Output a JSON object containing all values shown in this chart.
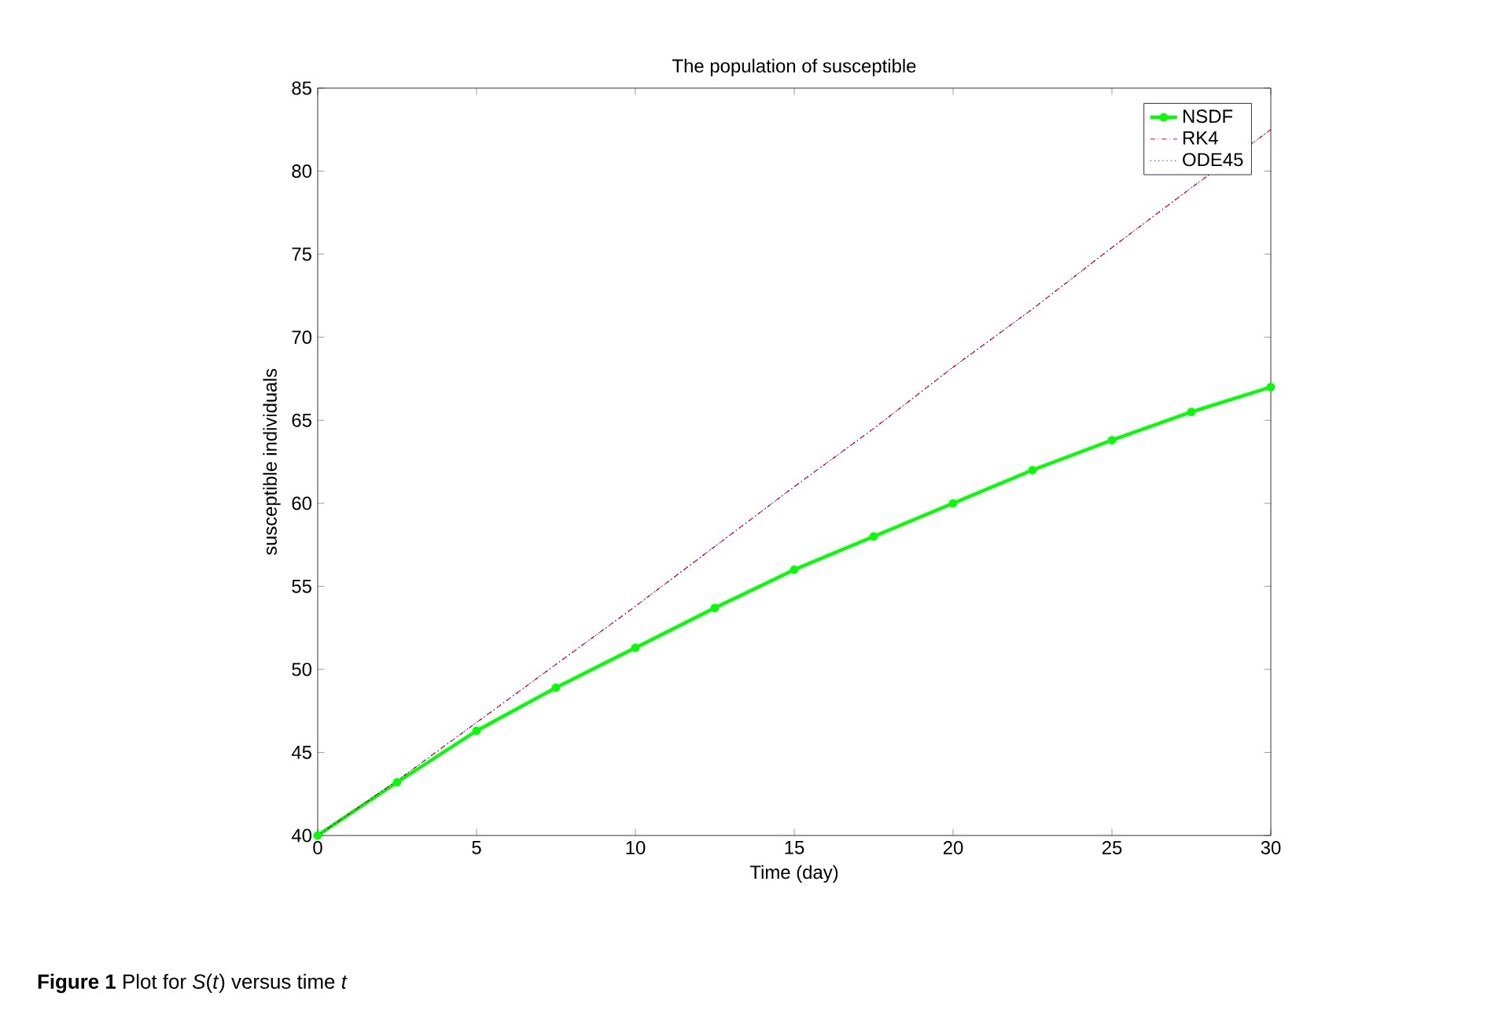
{
  "chart_data": {
    "type": "line",
    "title": "The population of susceptible",
    "xlabel": "Time (day)",
    "ylabel": "susceptible individuals",
    "x": [
      0,
      2.5,
      5,
      7.5,
      10,
      12.5,
      15,
      17.5,
      20,
      22.5,
      25,
      27.5,
      30
    ],
    "series": [
      {
        "name": "NSDF",
        "color": "#00ff00",
        "marker": "circle",
        "line_style": "solid",
        "values": [
          40,
          43.2,
          46.3,
          48.9,
          51.3,
          53.7,
          56.0,
          58.0,
          60.0,
          62.0,
          63.8,
          65.5,
          67.0
        ]
      },
      {
        "name": "RK4",
        "color": "#ff0000",
        "marker": "none",
        "line_style": "dashed",
        "values": [
          40,
          43.3,
          46.8,
          50.3,
          53.8,
          57.4,
          61.0,
          64.5,
          68.2,
          71.7,
          75.4,
          79.0,
          82.5
        ]
      },
      {
        "name": "ODE45",
        "color": "#0000ff",
        "marker": "none",
        "line_style": "dotted",
        "values": [
          40,
          43.3,
          46.8,
          50.3,
          53.8,
          57.4,
          61.0,
          64.5,
          68.2,
          71.7,
          75.4,
          79.0,
          82.5
        ]
      }
    ],
    "xlim": [
      0,
      30
    ],
    "xticks": [
      0,
      5,
      10,
      15,
      20,
      25,
      30
    ],
    "ylim": [
      40,
      85
    ],
    "yticks": [
      40,
      45,
      50,
      55,
      60,
      65,
      70,
      75,
      80,
      85
    ],
    "legend": "top right",
    "grid": false,
    "annotations": [
      "**Figure 1** Plot for *S*(*t*) versus time *t*"
    ]
  }
}
